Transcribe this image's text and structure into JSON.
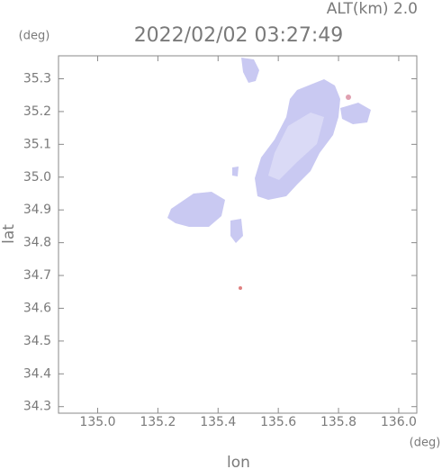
{
  "chart_data": {
    "type": "map",
    "title": "2022/02/02 03:27:49",
    "subtitle": "ALT(km) 2.0",
    "x_unit": "(deg)",
    "y_unit": "(deg)",
    "x_label": "lon",
    "y_label": "lat",
    "xlim": [
      134.87,
      136.06
    ],
    "ylim": [
      34.28,
      35.37
    ],
    "xticks": [
      {
        "value": 135,
        "label": "135.0"
      },
      135.2,
      135.4,
      135.6,
      135.8,
      {
        "value": 136,
        "label": "136.0"
      }
    ],
    "yticks": [
      34.3,
      34.4,
      34.5,
      34.6,
      34.7,
      34.8,
      34.9,
      {
        "value": 35,
        "label": "35.0"
      },
      35.1,
      35.2,
      35.3
    ]
  }
}
